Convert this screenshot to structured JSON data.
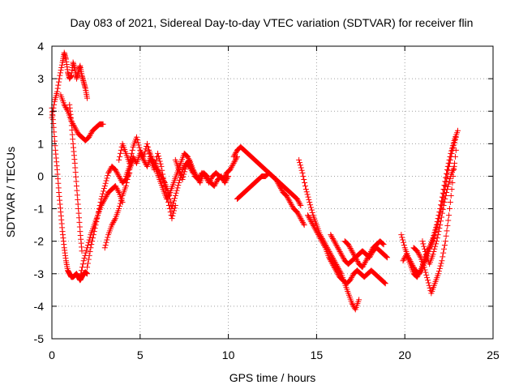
{
  "chart_data": {
    "type": "scatter",
    "title": "Day 083 of 2021, Sidereal Day-to-day VTEC variation (SDTVAR) for receiver flin",
    "xlabel": "GPS time / hours",
    "ylabel": "SDTVAR / TECUs",
    "xlim": [
      0,
      25
    ],
    "ylim": [
      -5,
      4
    ],
    "xticks": [
      0,
      5,
      10,
      15,
      20,
      25
    ],
    "yticks": [
      -5,
      -4,
      -3,
      -2,
      -1,
      0,
      1,
      2,
      3,
      4
    ],
    "grid": true,
    "marker": "+",
    "series": [
      {
        "name": "SDTVAR",
        "color": "#ff0000",
        "segments": [
          {
            "x": [
              0.0,
              0.15,
              0.3,
              0.45,
              0.6,
              0.7,
              0.8,
              0.9,
              1.0,
              1.1,
              1.2,
              1.3,
              1.4,
              1.5,
              1.6,
              1.7,
              1.8,
              1.9,
              2.0
            ],
            "y": [
              1.8,
              2.3,
              2.6,
              3.1,
              3.5,
              3.8,
              3.6,
              3.2,
              3.0,
              3.1,
              3.5,
              3.3,
              3.0,
              3.2,
              3.4,
              3.1,
              2.9,
              2.7,
              2.4
            ]
          },
          {
            "x": [
              0.0,
              0.1,
              0.2,
              0.3,
              0.4,
              0.5,
              0.6,
              0.7,
              0.8,
              0.9,
              1.0,
              1.1,
              1.2,
              1.3,
              1.4,
              1.5,
              1.6,
              1.7,
              1.8,
              1.9,
              2.0
            ],
            "y": [
              2.1,
              1.5,
              0.8,
              0.2,
              -0.5,
              -1.1,
              -1.7,
              -2.2,
              -2.6,
              -2.9,
              -3.0,
              -3.1,
              -3.1,
              -3.05,
              -3.0,
              -3.1,
              -3.2,
              -3.1,
              -3.0,
              -2.95,
              -3.0
            ]
          },
          {
            "x": [
              1.0,
              1.1,
              1.2,
              1.3,
              1.4,
              1.5,
              1.6,
              1.7
            ],
            "y": [
              2.2,
              1.7,
              1.0,
              0.4,
              -0.3,
              -1.0,
              -1.7,
              -2.3
            ]
          },
          {
            "x": [
              0.5,
              0.7,
              0.9,
              1.1,
              1.3,
              1.5,
              1.7,
              1.9,
              2.1,
              2.3,
              2.5,
              2.7,
              2.9
            ],
            "y": [
              2.5,
              2.2,
              2.0,
              1.7,
              1.5,
              1.3,
              1.2,
              1.1,
              1.2,
              1.4,
              1.5,
              1.6,
              1.6
            ]
          },
          {
            "x": [
              1.6,
              1.8,
              2.0,
              2.2,
              2.4,
              2.6,
              2.8,
              3.0,
              3.2,
              3.4,
              3.6,
              3.8,
              4.0
            ],
            "y": [
              -3.1,
              -2.6,
              -2.2,
              -1.8,
              -1.5,
              -1.2,
              -0.9,
              -0.7,
              -0.5,
              -0.4,
              -0.3,
              -0.5,
              -0.8
            ]
          },
          {
            "x": [
              2.0,
              2.2,
              2.4,
              2.6,
              2.8,
              3.0,
              3.2,
              3.4,
              3.6,
              3.8,
              4.0,
              4.2,
              4.4
            ],
            "y": [
              -2.8,
              -2.2,
              -1.7,
              -1.2,
              -0.7,
              -0.3,
              0.1,
              0.3,
              0.2,
              0.0,
              -0.2,
              -0.1,
              0.1
            ]
          },
          {
            "x": [
              3.0,
              3.2,
              3.4,
              3.6,
              3.8,
              4.0,
              4.2,
              4.4,
              4.6
            ],
            "y": [
              -2.2,
              -1.8,
              -1.5,
              -1.3,
              -1.0,
              -0.6,
              -0.3,
              0.2,
              0.5
            ]
          },
          {
            "x": [
              3.8,
              4.0,
              4.2,
              4.4,
              4.6,
              4.8,
              5.0,
              5.2,
              5.4,
              5.6,
              5.8,
              6.0,
              6.2,
              6.4,
              6.6,
              6.8,
              7.0
            ],
            "y": [
              0.5,
              1.0,
              0.7,
              0.4,
              0.9,
              1.2,
              0.8,
              0.6,
              1.0,
              0.5,
              0.2,
              0.7,
              0.3,
              -0.3,
              -0.8,
              -1.3,
              -0.9
            ]
          },
          {
            "x": [
              4.2,
              4.4,
              4.6,
              4.8,
              5.0,
              5.2,
              5.4,
              5.6,
              5.8,
              6.0,
              6.2,
              6.4,
              6.6,
              6.8,
              7.0,
              7.2,
              7.4,
              7.6,
              7.8,
              8.0
            ],
            "y": [
              0.0,
              0.3,
              0.6,
              0.4,
              0.7,
              0.5,
              0.3,
              0.6,
              0.4,
              0.2,
              0.0,
              -0.2,
              -0.5,
              -1.0,
              -0.6,
              -0.2,
              0.2,
              0.4,
              0.3,
              0.1
            ]
          },
          {
            "x": [
              5.5,
              5.7,
              5.9,
              6.1,
              6.3,
              6.5,
              6.7,
              6.9,
              7.1,
              7.3,
              7.5,
              7.7,
              7.9,
              8.1,
              8.3,
              8.5,
              8.7,
              8.9,
              9.1,
              9.3,
              9.5,
              9.7,
              9.9,
              10.1,
              10.3,
              10.5
            ],
            "y": [
              0.8,
              0.5,
              0.2,
              -0.1,
              -0.4,
              -0.7,
              -0.5,
              -0.2,
              0.1,
              0.4,
              0.7,
              0.6,
              0.3,
              0.0,
              -0.1,
              0.1,
              0.0,
              -0.2,
              0.0,
              0.1,
              0.0,
              -0.1,
              0.1,
              0.2,
              0.4,
              0.6
            ]
          },
          {
            "x": [
              7.0,
              7.2,
              7.4,
              7.6,
              7.8,
              8.0,
              8.2,
              8.4,
              8.6,
              8.8,
              9.0,
              9.2,
              9.4,
              9.6,
              9.8,
              10.0
            ],
            "y": [
              0.5,
              0.2,
              -0.1,
              0.3,
              0.5,
              0.2,
              0.0,
              -0.2,
              0.1,
              0.0,
              -0.2,
              -0.3,
              -0.1,
              0.0,
              -0.2,
              0.0
            ]
          },
          {
            "x": [
              10.3,
              10.5,
              10.7,
              10.9,
              11.1,
              11.3,
              11.5,
              11.7,
              11.9,
              12.1,
              12.3,
              12.5,
              12.7,
              12.9,
              13.1,
              13.3,
              13.5,
              13.7,
              13.9,
              14.1
            ],
            "y": [
              0.6,
              0.8,
              0.9,
              0.8,
              0.7,
              0.6,
              0.5,
              0.4,
              0.3,
              0.2,
              0.1,
              0.0,
              -0.1,
              -0.2,
              -0.3,
              -0.4,
              -0.5,
              -0.6,
              -0.7,
              -0.9
            ]
          },
          {
            "x": [
              10.5,
              10.7,
              10.9,
              11.1,
              11.3,
              11.5,
              11.7,
              11.9,
              12.1,
              12.3,
              12.5,
              12.7,
              12.9,
              13.1,
              13.3,
              13.5,
              13.7,
              13.9,
              14.1,
              14.3
            ],
            "y": [
              -0.7,
              -0.6,
              -0.5,
              -0.4,
              -0.3,
              -0.2,
              -0.1,
              0.0,
              0.0,
              0.1,
              0.0,
              -0.1,
              -0.3,
              -0.5,
              -0.6,
              -0.8,
              -1.0,
              -1.1,
              -1.3,
              -1.5
            ]
          },
          {
            "x": [
              14.0,
              14.2,
              14.4,
              14.6,
              14.8,
              15.0,
              15.2,
              15.4,
              15.6,
              15.8,
              16.0,
              16.2,
              16.4,
              16.6,
              16.8,
              17.0,
              17.2,
              17.4
            ],
            "y": [
              0.5,
              0.1,
              -0.4,
              -0.8,
              -1.2,
              -1.5,
              -1.8,
              -2.0,
              -2.2,
              -2.4,
              -2.6,
              -2.8,
              -3.0,
              -3.3,
              -3.6,
              -3.9,
              -4.1,
              -3.8
            ]
          },
          {
            "x": [
              14.5,
              14.7,
              14.9,
              15.1,
              15.3,
              15.5,
              15.7,
              15.9,
              16.1,
              16.3,
              16.5,
              16.7,
              16.9,
              17.1,
              17.3,
              17.5,
              17.7,
              17.9,
              18.1,
              18.3,
              18.5,
              18.7,
              18.9
            ],
            "y": [
              -1.2,
              -1.4,
              -1.6,
              -1.8,
              -2.0,
              -2.2,
              -2.5,
              -2.7,
              -2.9,
              -3.1,
              -3.2,
              -3.3,
              -3.2,
              -3.0,
              -2.9,
              -3.0,
              -3.1,
              -3.0,
              -2.9,
              -3.0,
              -3.1,
              -3.2,
              -3.3
            ]
          },
          {
            "x": [
              15.8,
              16.0,
              16.2,
              16.4,
              16.6,
              16.8,
              17.0,
              17.2,
              17.4,
              17.6,
              17.8,
              18.0,
              18.2,
              18.4,
              18.6,
              18.8,
              19.0
            ],
            "y": [
              -1.8,
              -2.0,
              -2.2,
              -2.4,
              -2.6,
              -2.7,
              -2.6,
              -2.5,
              -2.4,
              -2.3,
              -2.4,
              -2.5,
              -2.3,
              -2.2,
              -2.3,
              -2.4,
              -2.5
            ]
          },
          {
            "x": [
              16.6,
              16.8,
              17.0,
              17.2,
              17.4,
              17.6,
              17.8,
              18.0,
              18.2,
              18.4,
              18.6,
              18.8
            ],
            "y": [
              -2.0,
              -2.1,
              -2.3,
              -2.5,
              -2.7,
              -2.8,
              -2.6,
              -2.4,
              -2.2,
              -2.1,
              -2.0,
              -2.1
            ]
          },
          {
            "x": [
              19.8,
              20.0,
              20.2,
              20.4,
              20.6,
              20.8,
              21.0,
              21.2,
              21.4,
              21.6,
              21.8,
              22.0,
              22.2,
              22.4,
              22.6,
              22.8,
              23.0
            ],
            "y": [
              -1.8,
              -2.2,
              -2.5,
              -2.7,
              -2.9,
              -3.0,
              -2.8,
              -2.5,
              -2.2,
              -1.9,
              -1.5,
              -1.0,
              -0.4,
              0.2,
              0.7,
              1.1,
              1.4
            ]
          },
          {
            "x": [
              19.9,
              20.1,
              20.3,
              20.5,
              20.7,
              20.9,
              21.1,
              21.3,
              21.5,
              21.7,
              21.9,
              22.1,
              22.3,
              22.5,
              22.7,
              22.9
            ],
            "y": [
              -2.6,
              -2.4,
              -2.7,
              -3.0,
              -3.1,
              -2.9,
              -2.6,
              -2.3,
              -2.1,
              -1.8,
              -1.4,
              -0.9,
              -0.3,
              0.3,
              0.8,
              1.2
            ]
          },
          {
            "x": [
              20.5,
              20.7,
              20.9,
              21.1,
              21.3,
              21.5,
              21.7,
              21.9,
              22.1,
              22.3,
              22.5,
              22.7,
              22.9
            ],
            "y": [
              -2.2,
              -2.3,
              -2.5,
              -2.8,
              -3.2,
              -3.6,
              -3.3,
              -3.0,
              -2.6,
              -2.0,
              -1.2,
              -0.2,
              0.8
            ]
          },
          {
            "x": [
              21.0,
              21.2,
              21.4,
              21.6,
              21.8,
              22.0,
              22.2,
              22.4,
              22.6,
              22.8
            ],
            "y": [
              -2.0,
              -2.4,
              -2.7,
              -2.4,
              -2.0,
              -1.5,
              -0.9,
              -0.4,
              0.0,
              0.3
            ]
          }
        ]
      }
    ]
  }
}
